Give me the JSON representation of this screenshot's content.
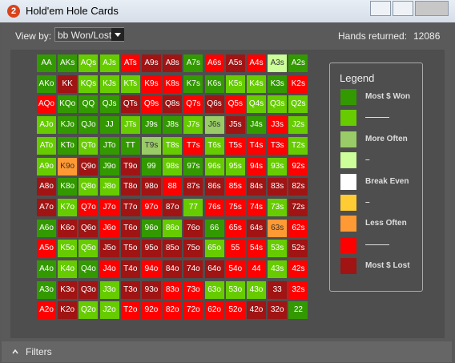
{
  "window": {
    "title": "Hold'em Hole Cards"
  },
  "toolbar": {
    "view_by_label": "View by:",
    "view_by_value": "bb Won/Lost",
    "hands_returned_label": "Hands returned:",
    "hands_returned": 12086
  },
  "grid": {
    "rows": [
      {
        "labels": [
          "AA",
          "AKs",
          "AQs",
          "AJs",
          "ATs",
          "A9s",
          "A8s",
          "A7s",
          "A6s",
          "A5s",
          "A4s",
          "A3s",
          "A2s"
        ],
        "colors": [
          "#339900",
          "#339900",
          "#66cc00",
          "#66cc00",
          "#ff0000",
          "#a01414",
          "#a01414",
          "#339900",
          "#ff0000",
          "#a01414",
          "#ff0000",
          "#ccff99",
          "#339900"
        ]
      },
      {
        "labels": [
          "AKo",
          "KK",
          "KQs",
          "KJs",
          "KTs",
          "K9s",
          "K8s",
          "K7s",
          "K6s",
          "K5s",
          "K4s",
          "K3s",
          "K2s"
        ],
        "colors": [
          "#339900",
          "#a01414",
          "#66cc00",
          "#66cc00",
          "#66cc00",
          "#ff0000",
          "#ff0000",
          "#339900",
          "#339900",
          "#66cc00",
          "#66cc00",
          "#339900",
          "#ff0000"
        ]
      },
      {
        "labels": [
          "AQo",
          "KQo",
          "QQ",
          "QJs",
          "QTs",
          "Q9s",
          "Q8s",
          "Q7s",
          "Q6s",
          "Q5s",
          "Q4s",
          "Q3s",
          "Q2s"
        ],
        "colors": [
          "#ff0000",
          "#339900",
          "#339900",
          "#339900",
          "#a01414",
          "#ff0000",
          "#a01414",
          "#ff0000",
          "#a01414",
          "#ff0000",
          "#66cc00",
          "#66cc00",
          "#66cc00"
        ]
      },
      {
        "labels": [
          "AJo",
          "KJo",
          "QJo",
          "JJ",
          "JTs",
          "J9s",
          "J8s",
          "J7s",
          "J6s",
          "J5s",
          "J4s",
          "J3s",
          "J2s"
        ],
        "colors": [
          "#66cc00",
          "#339900",
          "#339900",
          "#339900",
          "#66cc00",
          "#339900",
          "#339900",
          "#66cc00",
          "#99cc66",
          "#a01414",
          "#339900",
          "#ff0000",
          "#66cc00"
        ]
      },
      {
        "labels": [
          "ATo",
          "KTo",
          "QTo",
          "JTo",
          "TT",
          "T9s",
          "T8s",
          "T7s",
          "T6s",
          "T5s",
          "T4s",
          "T3s",
          "T2s"
        ],
        "colors": [
          "#66cc00",
          "#339900",
          "#66cc00",
          "#339900",
          "#339900",
          "#99cc66",
          "#66cc00",
          "#ff0000",
          "#66cc00",
          "#ff0000",
          "#ff0000",
          "#ff0000",
          "#66cc00"
        ]
      },
      {
        "labels": [
          "A9o",
          "K9o",
          "Q9o",
          "J9o",
          "T9o",
          "99",
          "98s",
          "97s",
          "96s",
          "95s",
          "94s",
          "93s",
          "92s"
        ],
        "colors": [
          "#66cc00",
          "#ff9933",
          "#a01414",
          "#339900",
          "#a01414",
          "#339900",
          "#66cc00",
          "#339900",
          "#66cc00",
          "#66cc00",
          "#ff0000",
          "#66cc00",
          "#ff0000"
        ]
      },
      {
        "labels": [
          "A8o",
          "K8o",
          "Q8o",
          "J8o",
          "T8o",
          "98o",
          "88",
          "87s",
          "86s",
          "85s",
          "84s",
          "83s",
          "82s"
        ],
        "colors": [
          "#a01414",
          "#339900",
          "#66cc00",
          "#66cc00",
          "#a01414",
          "#a01414",
          "#ff0000",
          "#a01414",
          "#a01414",
          "#ff0000",
          "#a01414",
          "#a01414",
          "#a01414"
        ]
      },
      {
        "labels": [
          "A7o",
          "K7o",
          "Q7o",
          "J7o",
          "T7o",
          "97o",
          "87o",
          "77",
          "76s",
          "75s",
          "74s",
          "73s",
          "72s"
        ],
        "colors": [
          "#a01414",
          "#66cc00",
          "#ff0000",
          "#ff0000",
          "#a01414",
          "#ff0000",
          "#a01414",
          "#66cc00",
          "#ff0000",
          "#ff0000",
          "#ff0000",
          "#66cc00",
          "#a01414"
        ]
      },
      {
        "labels": [
          "A6o",
          "K6o",
          "Q6o",
          "J6o",
          "T6o",
          "96o",
          "86o",
          "76o",
          "66",
          "65s",
          "64s",
          "63s",
          "62s"
        ],
        "colors": [
          "#339900",
          "#a01414",
          "#a01414",
          "#ff0000",
          "#a01414",
          "#339900",
          "#66cc00",
          "#a01414",
          "#339900",
          "#ff0000",
          "#a01414",
          "#ff9933",
          "#ff0000"
        ]
      },
      {
        "labels": [
          "A5o",
          "K5o",
          "Q5o",
          "J5o",
          "T5o",
          "95o",
          "85o",
          "75o",
          "65o",
          "55",
          "54s",
          "53s",
          "52s"
        ],
        "colors": [
          "#ff0000",
          "#66cc00",
          "#66cc00",
          "#a01414",
          "#a01414",
          "#a01414",
          "#a01414",
          "#a01414",
          "#66cc00",
          "#ff0000",
          "#ff0000",
          "#66cc00",
          "#a01414"
        ]
      },
      {
        "labels": [
          "A4o",
          "K4o",
          "Q4o",
          "J4o",
          "T4o",
          "94o",
          "84o",
          "74o",
          "64o",
          "54o",
          "44",
          "43s",
          "42s"
        ],
        "colors": [
          "#339900",
          "#66cc00",
          "#339900",
          "#ff0000",
          "#a01414",
          "#ff0000",
          "#a01414",
          "#a01414",
          "#a01414",
          "#ff0000",
          "#ff0000",
          "#66cc00",
          "#ff0000"
        ]
      },
      {
        "labels": [
          "A3o",
          "K3o",
          "Q3o",
          "J3o",
          "T3o",
          "93o",
          "83o",
          "73o",
          "63o",
          "53o",
          "43o",
          "33",
          "32s"
        ],
        "colors": [
          "#339900",
          "#a01414",
          "#a01414",
          "#66cc00",
          "#a01414",
          "#a01414",
          "#ff0000",
          "#ff0000",
          "#66cc00",
          "#66cc00",
          "#66cc00",
          "#a01414",
          "#ff0000"
        ]
      },
      {
        "labels": [
          "A2o",
          "K2o",
          "Q2o",
          "J2o",
          "T2o",
          "92o",
          "82o",
          "72o",
          "62o",
          "52o",
          "42o",
          "32o",
          "22"
        ],
        "colors": [
          "#ff0000",
          "#a01414",
          "#66cc00",
          "#66cc00",
          "#ff0000",
          "#ff0000",
          "#ff0000",
          "#ff0000",
          "#ff0000",
          "#ff0000",
          "#a01414",
          "#a01414",
          "#339900"
        ]
      }
    ]
  },
  "legend": {
    "title": "Legend",
    "items": [
      {
        "label": "Most $ Won",
        "color": "#339900"
      },
      {
        "label": "———",
        "color": "#66cc00"
      },
      {
        "label": "More Often",
        "color": "#99cc66"
      },
      {
        "label": "–",
        "color": "#ccff99"
      },
      {
        "label": "Break Even",
        "color": "#ffffff"
      },
      {
        "label": "–",
        "color": "#ffcc33"
      },
      {
        "label": "Less Often",
        "color": "#ff9933"
      },
      {
        "label": "———",
        "color": "#ff0000"
      },
      {
        "label": "Most $ Lost",
        "color": "#a01414"
      }
    ]
  },
  "footer": {
    "filters": "Filters"
  }
}
